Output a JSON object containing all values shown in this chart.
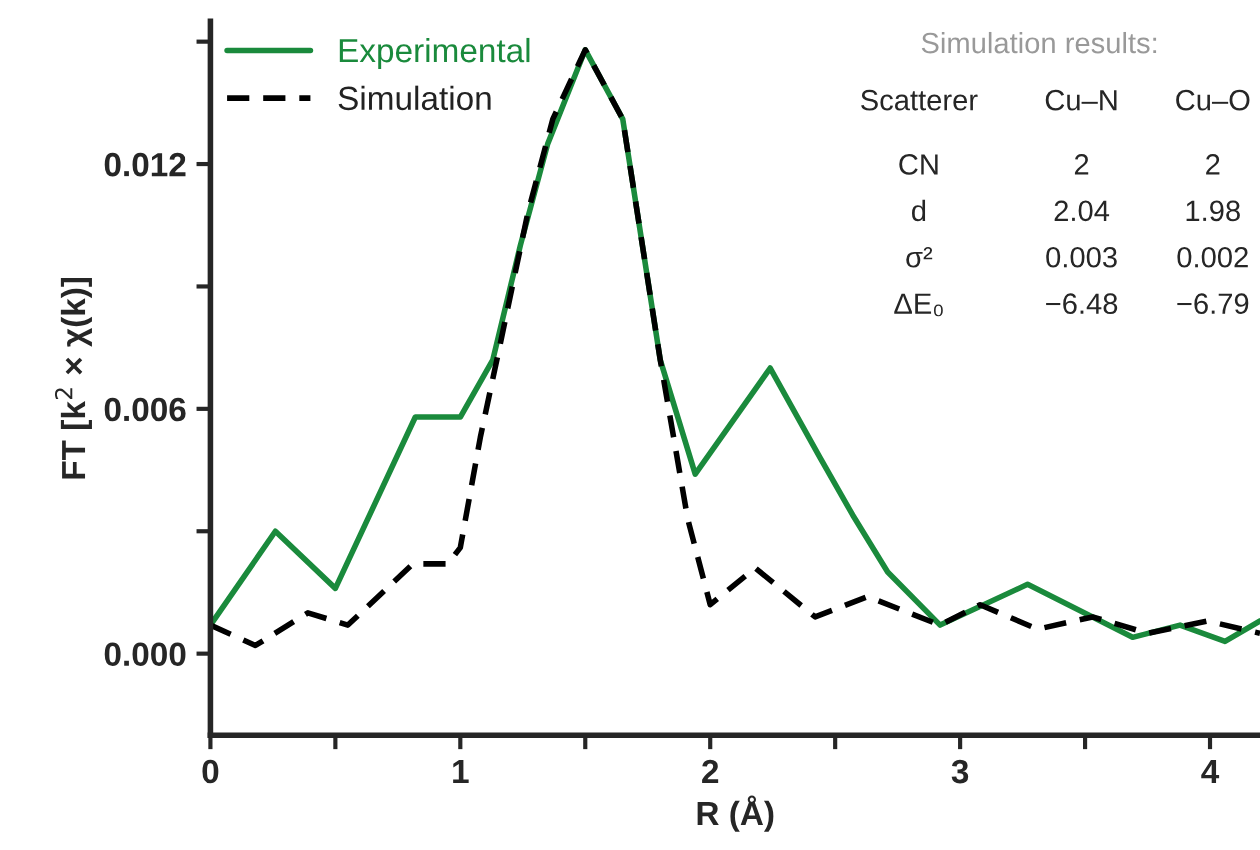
{
  "chart_data": {
    "type": "line",
    "xlabel": "R (Å)",
    "ylabel": "FT [k$^{2}$ × χ(k)]",
    "xlim": [
      0,
      4.2
    ],
    "ylim": [
      -0.002,
      0.0155
    ],
    "xticks": [
      0,
      {
        "value": 0.5,
        "label": null
      },
      1,
      {
        "value": 1.5,
        "label": null
      },
      2,
      {
        "value": 2.5,
        "label": null
      },
      3,
      {
        "value": 3.5,
        "label": null
      },
      4
    ],
    "yticks": [
      {
        "value": 0,
        "label": "0.000"
      },
      {
        "value": 0.003,
        "label": null
      },
      {
        "value": 0.006,
        "label": "0.006"
      },
      {
        "value": 0.009,
        "label": null
      },
      {
        "value": 0.012,
        "label": "0.012"
      },
      {
        "value": 0.015,
        "label": null
      }
    ],
    "legend": "top left",
    "grid": false,
    "series": [
      {
        "name": "Experimental",
        "color": "#1a8a3c",
        "line_style": "solid",
        "x": [
          0,
          0.26,
          0.5,
          0.82,
          1.0,
          1.13,
          1.24,
          1.35,
          1.5,
          1.65,
          1.8,
          1.94,
          2.24,
          2.44,
          2.57,
          2.71,
          2.92,
          3.27,
          3.53,
          3.69,
          3.88,
          4.06,
          4.2
        ],
        "values": [
          0.0007,
          0.003,
          0.0016,
          0.0058,
          0.0058,
          0.0072,
          0.01,
          0.0125,
          0.0148,
          0.0131,
          0.0072,
          0.0044,
          0.007,
          0.0048,
          0.0034,
          0.002,
          0.0007,
          0.0017,
          0.0009,
          0.0004,
          0.0007,
          0.0003,
          0.0008
        ]
      },
      {
        "name": "Simulation",
        "color": "#000000",
        "line_style": "dashed",
        "x": [
          0,
          0.18,
          0.39,
          0.55,
          0.81,
          0.95,
          1.0,
          1.08,
          1.16,
          1.27,
          1.37,
          1.5,
          1.65,
          1.8,
          1.91,
          2.0,
          2.18,
          2.42,
          2.63,
          2.92,
          3.08,
          3.31,
          3.53,
          3.75,
          3.99,
          4.2
        ],
        "values": [
          0.0007,
          0.0002,
          0.001,
          0.0007,
          0.0022,
          0.0022,
          0.0026,
          0.0053,
          0.0076,
          0.0108,
          0.0131,
          0.0148,
          0.0131,
          0.0072,
          0.0033,
          0.0012,
          0.0021,
          0.0009,
          0.0014,
          0.0007,
          0.0012,
          0.0006,
          0.0009,
          0.0005,
          0.0008,
          0.0005
        ]
      }
    ],
    "annotations": [
      "Simulation results:",
      "Scatterer",
      "Cu–N",
      "Cu–O",
      "CN",
      "2",
      "2",
      "d",
      "2.04",
      "1.98",
      "σ²",
      "0.003",
      "0.002",
      "ΔE₀",
      "−6.48",
      "−6.79"
    ]
  }
}
